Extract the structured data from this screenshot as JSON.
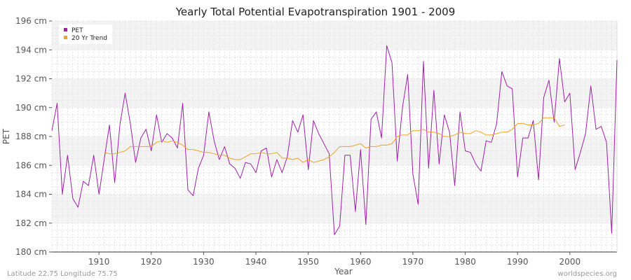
{
  "chart_data": {
    "type": "line",
    "title": "Yearly Total Potential Evapotranspiration 1901 - 2009",
    "xlabel": "Year",
    "ylabel": "PET",
    "xlim": [
      1901,
      2009
    ],
    "ylim": [
      180,
      196
    ],
    "y_ticks": [
      180,
      182,
      184,
      186,
      188,
      190,
      192,
      194,
      196
    ],
    "y_tick_labels": [
      "180 cm",
      "182 cm",
      "184 cm",
      "186 cm",
      "188 cm",
      "190 cm",
      "192 cm",
      "194 cm",
      "196 cm"
    ],
    "x_ticks": [
      1910,
      1920,
      1930,
      1940,
      1950,
      1960,
      1970,
      1980,
      1990,
      2000
    ],
    "x_tick_labels": [
      "1910",
      "1920",
      "1930",
      "1940",
      "1950",
      "1960",
      "1970",
      "1980",
      "1990",
      "2000"
    ],
    "legend": {
      "placement": "top-left",
      "entries": [
        "PET",
        "20 Yr Trend"
      ]
    },
    "series": [
      {
        "name": "PET",
        "color": "#a020a8",
        "x": [
          1901,
          1902,
          1903,
          1904,
          1905,
          1906,
          1907,
          1908,
          1909,
          1910,
          1911,
          1912,
          1913,
          1914,
          1915,
          1916,
          1917,
          1918,
          1919,
          1920,
          1921,
          1922,
          1923,
          1924,
          1925,
          1926,
          1927,
          1928,
          1929,
          1930,
          1931,
          1932,
          1933,
          1934,
          1935,
          1936,
          1937,
          1938,
          1939,
          1940,
          1941,
          1942,
          1943,
          1944,
          1945,
          1946,
          1947,
          1948,
          1949,
          1950,
          1951,
          1952,
          1953,
          1954,
          1955,
          1956,
          1957,
          1958,
          1959,
          1960,
          1961,
          1962,
          1963,
          1964,
          1965,
          1966,
          1967,
          1968,
          1969,
          1970,
          1971,
          1972,
          1973,
          1974,
          1975,
          1976,
          1977,
          1978,
          1979,
          1980,
          1981,
          1982,
          1983,
          1984,
          1985,
          1986,
          1987,
          1988,
          1989,
          1990,
          1991,
          1992,
          1993,
          1994,
          1995,
          1996,
          1997,
          1998,
          1999,
          2000,
          2001,
          2002,
          2003,
          2004,
          2005,
          2006,
          2007,
          2008,
          2009
        ],
        "values": [
          188.4,
          190.3,
          184.0,
          186.7,
          183.7,
          183.1,
          184.9,
          184.6,
          186.7,
          184.0,
          186.4,
          188.8,
          184.8,
          188.8,
          191.0,
          188.9,
          186.2,
          187.9,
          188.5,
          187.0,
          189.5,
          187.6,
          188.2,
          187.9,
          187.2,
          190.3,
          184.3,
          183.9,
          185.8,
          186.7,
          189.7,
          187.7,
          186.4,
          187.3,
          186.1,
          185.8,
          185.1,
          186.2,
          186.1,
          185.5,
          187.0,
          187.2,
          185.2,
          186.4,
          185.5,
          186.6,
          189.1,
          188.3,
          189.5,
          185.7,
          189.1,
          188.2,
          187.5,
          186.8,
          181.2,
          181.8,
          186.7,
          186.7,
          182.8,
          187.1,
          181.9,
          189.2,
          189.7,
          187.9,
          194.3,
          193.1,
          186.3,
          190.0,
          192.3,
          185.4,
          183.3,
          193.2,
          185.8,
          191.2,
          186.1,
          189.5,
          188.3,
          184.6,
          189.7,
          187.0,
          186.9,
          186.1,
          185.6,
          187.7,
          187.6,
          188.9,
          192.5,
          191.5,
          191.3,
          185.2,
          187.9,
          187.9,
          189.1,
          185.0,
          190.7,
          191.9,
          189.0,
          193.4,
          190.4,
          191.0,
          185.7,
          186.9,
          188.2,
          191.5,
          188.5,
          188.7,
          187.6,
          181.3,
          193.3
        ]
      },
      {
        "name": "20 Yr Trend",
        "color": "#f4a020",
        "x": [
          1911,
          1912,
          1913,
          1914,
          1915,
          1916,
          1917,
          1918,
          1919,
          1920,
          1921,
          1922,
          1923,
          1924,
          1925,
          1926,
          1927,
          1928,
          1929,
          1930,
          1931,
          1932,
          1933,
          1934,
          1935,
          1936,
          1937,
          1938,
          1939,
          1940,
          1941,
          1942,
          1943,
          1944,
          1945,
          1946,
          1947,
          1948,
          1949,
          1950,
          1951,
          1952,
          1953,
          1954,
          1955,
          1956,
          1957,
          1958,
          1959,
          1960,
          1961,
          1962,
          1963,
          1964,
          1965,
          1966,
          1967,
          1968,
          1969,
          1970,
          1971,
          1972,
          1973,
          1974,
          1975,
          1976,
          1977,
          1978,
          1979,
          1980,
          1981,
          1982,
          1983,
          1984,
          1985,
          1986,
          1987,
          1988,
          1989,
          1990,
          1991,
          1992,
          1993,
          1994,
          1995,
          1996,
          1997,
          1998,
          1999
        ],
        "values": [
          186.9,
          186.8,
          186.8,
          186.9,
          187.0,
          187.3,
          187.3,
          187.3,
          187.3,
          187.3,
          187.6,
          187.7,
          187.6,
          187.7,
          187.6,
          187.4,
          187.1,
          187.1,
          187.0,
          186.9,
          186.9,
          186.8,
          186.7,
          186.7,
          186.5,
          186.4,
          186.4,
          186.6,
          186.8,
          186.8,
          186.9,
          186.8,
          186.8,
          186.9,
          186.5,
          186.5,
          186.4,
          186.5,
          186.2,
          186.4,
          186.2,
          186.3,
          186.4,
          186.6,
          186.9,
          187.3,
          187.3,
          187.3,
          187.4,
          187.5,
          187.2,
          187.3,
          187.3,
          187.4,
          187.4,
          187.5,
          188.0,
          188.1,
          188.1,
          188.4,
          188.4,
          188.5,
          188.3,
          188.3,
          188.2,
          188.0,
          188.0,
          188.1,
          188.3,
          188.2,
          188.2,
          188.4,
          188.3,
          188.1,
          188.1,
          188.2,
          188.3,
          188.3,
          188.5,
          188.9,
          188.9,
          188.8,
          188.8,
          188.9,
          189.3,
          189.3,
          189.3,
          188.7,
          188.8
        ]
      }
    ]
  },
  "footer": {
    "location": "Latitude 22.75 Longitude 75.75",
    "source": "worldspecies.org"
  }
}
